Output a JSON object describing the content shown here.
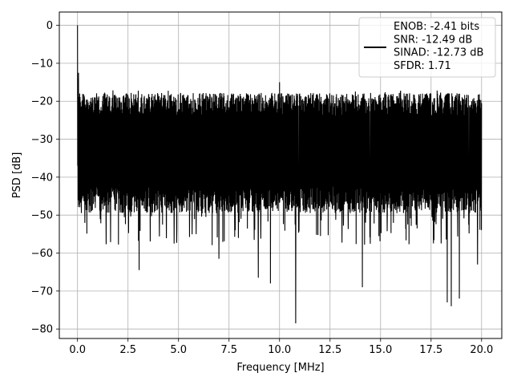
{
  "chart_data": {
    "type": "line",
    "xlabel": "Frequency [MHz]",
    "ylabel": "PSD [dB]",
    "xlim": [
      -0.9,
      21.0
    ],
    "ylim": [
      -82.5,
      3.5
    ],
    "xticks": [
      0.0,
      2.5,
      5.0,
      7.5,
      10.0,
      12.5,
      15.0,
      17.5,
      20.0
    ],
    "xtick_labels": [
      "0.0",
      "2.5",
      "5.0",
      "7.5",
      "10.0",
      "12.5",
      "15.0",
      "17.5",
      "20.0"
    ],
    "yticks": [
      0,
      -10,
      -20,
      -30,
      -40,
      -50,
      -60,
      -70,
      -80
    ],
    "ytick_labels": [
      "0",
      "−10",
      "−20",
      "−30",
      "−40",
      "−50",
      "−60",
      "−70",
      "−80"
    ],
    "grid": true,
    "legend_position": "top-right",
    "series": [
      {
        "name": "ENOB: -2.41 bits\nSNR: -12.49 dB\nSINAD: -12.73 dB\nSFDR: 1.71",
        "color": "#000000",
        "description": "dense noisy PSD trace",
        "x_range": [
          0.0,
          20.0
        ],
        "noise_band_db": [
          -46,
          -22
        ],
        "peaks": [
          {
            "x": 0.0,
            "y": 0.0
          },
          {
            "x": 0.05,
            "y": -12.5
          },
          {
            "x": 10.0,
            "y": -15.0
          },
          {
            "x": 20.0,
            "y": -20.5
          }
        ],
        "dips": [
          {
            "x": 3.05,
            "y": -64.5
          },
          {
            "x": 7.0,
            "y": -61.5
          },
          {
            "x": 8.95,
            "y": -66.5
          },
          {
            "x": 9.55,
            "y": -68.0
          },
          {
            "x": 10.8,
            "y": -78.5
          },
          {
            "x": 14.1,
            "y": -69.0
          },
          {
            "x": 18.3,
            "y": -73.0
          },
          {
            "x": 18.5,
            "y": -74.0
          },
          {
            "x": 18.9,
            "y": -72.0
          },
          {
            "x": 19.8,
            "y": -63.0
          }
        ]
      }
    ]
  }
}
